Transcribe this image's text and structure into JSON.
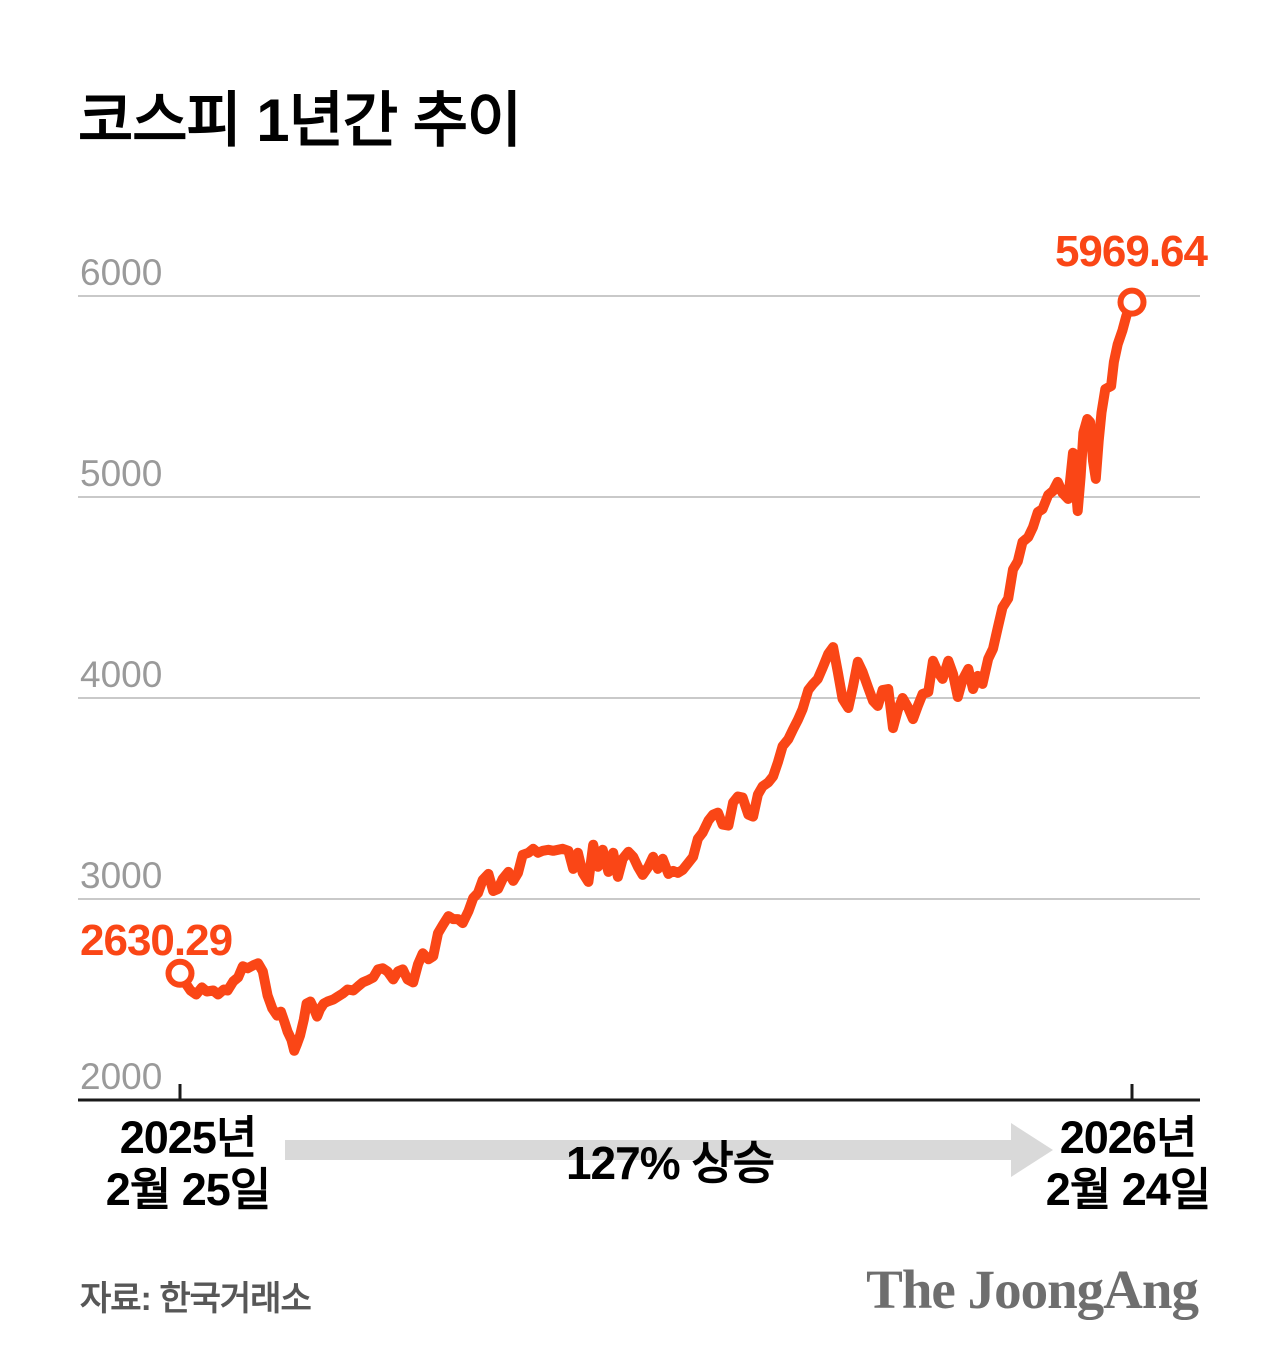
{
  "title": "코스피 1년간 추이",
  "colors": {
    "accent_orange": "#fa4616",
    "grid_gray": "#c9c9c9",
    "tick_label_gray": "#9a9a9a",
    "axis_black": "#1a1a1a",
    "arrow_gray": "#d9d9d9",
    "source_gray": "#575757",
    "logo_gray": "#6e6e6e"
  },
  "chart_data": {
    "type": "line",
    "title": "코스피 1년간 추이",
    "series_name": "KOSPI",
    "grid": true,
    "legend": "none",
    "ylim": [
      2000,
      6000
    ],
    "y_ticks": [
      2000,
      3000,
      4000,
      5000,
      6000
    ],
    "x_start_date": [
      "2025년",
      "2월 25일"
    ],
    "x_end_date": [
      "2026년",
      "2월 24일"
    ],
    "start_value": 2630.29,
    "end_value": 5969.64,
    "start_label": "2630.29",
    "end_label": "5969.64",
    "annotation": "127% 상승",
    "points": [
      [
        0,
        2630.29
      ],
      [
        0.006,
        2580
      ],
      [
        0.011,
        2545
      ],
      [
        0.017,
        2525
      ],
      [
        0.023,
        2560
      ],
      [
        0.028,
        2540
      ],
      [
        0.035,
        2545
      ],
      [
        0.04,
        2525
      ],
      [
        0.046,
        2550
      ],
      [
        0.05,
        2545
      ],
      [
        0.056,
        2590
      ],
      [
        0.061,
        2610
      ],
      [
        0.066,
        2665
      ],
      [
        0.071,
        2655
      ],
      [
        0.077,
        2670
      ],
      [
        0.082,
        2680
      ],
      [
        0.087,
        2640
      ],
      [
        0.092,
        2520
      ],
      [
        0.097,
        2455
      ],
      [
        0.102,
        2420
      ],
      [
        0.106,
        2440
      ],
      [
        0.11,
        2385
      ],
      [
        0.113,
        2340
      ],
      [
        0.117,
        2300
      ],
      [
        0.12,
        2245
      ],
      [
        0.123,
        2280
      ],
      [
        0.126,
        2320
      ],
      [
        0.13,
        2400
      ],
      [
        0.133,
        2480
      ],
      [
        0.137,
        2490
      ],
      [
        0.141,
        2450
      ],
      [
        0.144,
        2415
      ],
      [
        0.147,
        2450
      ],
      [
        0.151,
        2480
      ],
      [
        0.155,
        2490
      ],
      [
        0.161,
        2500
      ],
      [
        0.166,
        2515
      ],
      [
        0.171,
        2530
      ],
      [
        0.176,
        2550
      ],
      [
        0.182,
        2545
      ],
      [
        0.187,
        2565
      ],
      [
        0.192,
        2585
      ],
      [
        0.197,
        2595
      ],
      [
        0.203,
        2610
      ],
      [
        0.208,
        2650
      ],
      [
        0.213,
        2655
      ],
      [
        0.218,
        2640
      ],
      [
        0.224,
        2600
      ],
      [
        0.229,
        2640
      ],
      [
        0.234,
        2650
      ],
      [
        0.239,
        2600
      ],
      [
        0.245,
        2585
      ],
      [
        0.25,
        2675
      ],
      [
        0.255,
        2730
      ],
      [
        0.261,
        2700
      ],
      [
        0.266,
        2715
      ],
      [
        0.271,
        2830
      ],
      [
        0.276,
        2870
      ],
      [
        0.282,
        2915
      ],
      [
        0.287,
        2900
      ],
      [
        0.292,
        2900
      ],
      [
        0.297,
        2880
      ],
      [
        0.303,
        2940
      ],
      [
        0.308,
        3005
      ],
      [
        0.313,
        3030
      ],
      [
        0.318,
        3095
      ],
      [
        0.324,
        3125
      ],
      [
        0.329,
        3040
      ],
      [
        0.334,
        3050
      ],
      [
        0.339,
        3100
      ],
      [
        0.345,
        3135
      ],
      [
        0.35,
        3090
      ],
      [
        0.355,
        3130
      ],
      [
        0.36,
        3220
      ],
      [
        0.366,
        3230
      ],
      [
        0.371,
        3250
      ],
      [
        0.376,
        3230
      ],
      [
        0.381,
        3240
      ],
      [
        0.387,
        3245
      ],
      [
        0.392,
        3240
      ],
      [
        0.397,
        3245
      ],
      [
        0.402,
        3250
      ],
      [
        0.408,
        3240
      ],
      [
        0.413,
        3150
      ],
      [
        0.418,
        3230
      ],
      [
        0.423,
        3130
      ],
      [
        0.429,
        3085
      ],
      [
        0.434,
        3270
      ],
      [
        0.439,
        3160
      ],
      [
        0.444,
        3245
      ],
      [
        0.45,
        3135
      ],
      [
        0.455,
        3230
      ],
      [
        0.46,
        3110
      ],
      [
        0.465,
        3200
      ],
      [
        0.471,
        3235
      ],
      [
        0.476,
        3210
      ],
      [
        0.481,
        3160
      ],
      [
        0.486,
        3120
      ],
      [
        0.492,
        3160
      ],
      [
        0.497,
        3210
      ],
      [
        0.502,
        3150
      ],
      [
        0.507,
        3200
      ],
      [
        0.513,
        3125
      ],
      [
        0.518,
        3140
      ],
      [
        0.523,
        3130
      ],
      [
        0.528,
        3145
      ],
      [
        0.534,
        3180
      ],
      [
        0.539,
        3210
      ],
      [
        0.544,
        3300
      ],
      [
        0.549,
        3330
      ],
      [
        0.555,
        3390
      ],
      [
        0.56,
        3420
      ],
      [
        0.565,
        3430
      ],
      [
        0.57,
        3370
      ],
      [
        0.576,
        3365
      ],
      [
        0.581,
        3480
      ],
      [
        0.586,
        3510
      ],
      [
        0.591,
        3505
      ],
      [
        0.597,
        3420
      ],
      [
        0.602,
        3410
      ],
      [
        0.607,
        3520
      ],
      [
        0.612,
        3560
      ],
      [
        0.618,
        3580
      ],
      [
        0.623,
        3610
      ],
      [
        0.628,
        3680
      ],
      [
        0.633,
        3760
      ],
      [
        0.639,
        3795
      ],
      [
        0.644,
        3845
      ],
      [
        0.649,
        3890
      ],
      [
        0.654,
        3945
      ],
      [
        0.66,
        4040
      ],
      [
        0.665,
        4070
      ],
      [
        0.67,
        4095
      ],
      [
        0.675,
        4150
      ],
      [
        0.681,
        4220
      ],
      [
        0.686,
        4253
      ],
      [
        0.691,
        4130
      ],
      [
        0.696,
        3995
      ],
      [
        0.702,
        3950
      ],
      [
        0.707,
        4060
      ],
      [
        0.712,
        4180
      ],
      [
        0.717,
        4130
      ],
      [
        0.723,
        4050
      ],
      [
        0.728,
        3985
      ],
      [
        0.733,
        3960
      ],
      [
        0.738,
        4040
      ],
      [
        0.744,
        4045
      ],
      [
        0.749,
        3850
      ],
      [
        0.754,
        3940
      ],
      [
        0.759,
        4000
      ],
      [
        0.765,
        3950
      ],
      [
        0.77,
        3895
      ],
      [
        0.775,
        3960
      ],
      [
        0.78,
        4020
      ],
      [
        0.786,
        4030
      ],
      [
        0.791,
        4185
      ],
      [
        0.796,
        4130
      ],
      [
        0.801,
        4095
      ],
      [
        0.807,
        4185
      ],
      [
        0.812,
        4120
      ],
      [
        0.817,
        4005
      ],
      [
        0.822,
        4090
      ],
      [
        0.828,
        4145
      ],
      [
        0.833,
        4045
      ],
      [
        0.838,
        4110
      ],
      [
        0.843,
        4070
      ],
      [
        0.849,
        4195
      ],
      [
        0.854,
        4245
      ],
      [
        0.859,
        4350
      ],
      [
        0.864,
        4450
      ],
      [
        0.87,
        4495
      ],
      [
        0.875,
        4640
      ],
      [
        0.88,
        4680
      ],
      [
        0.885,
        4776
      ],
      [
        0.891,
        4800
      ],
      [
        0.896,
        4850
      ],
      [
        0.901,
        4925
      ],
      [
        0.906,
        4940
      ],
      [
        0.912,
        5010
      ],
      [
        0.917,
        5030
      ],
      [
        0.922,
        5075
      ],
      [
        0.927,
        5020
      ],
      [
        0.933,
        4990
      ],
      [
        0.938,
        5220
      ],
      [
        0.943,
        4930
      ],
      [
        0.946,
        5100
      ],
      [
        0.949,
        5320
      ],
      [
        0.953,
        5388
      ],
      [
        0.956,
        5373
      ],
      [
        0.959,
        5180
      ],
      [
        0.962,
        5090
      ],
      [
        0.965,
        5280
      ],
      [
        0.968,
        5420
      ],
      [
        0.972,
        5537
      ],
      [
        0.975,
        5545
      ],
      [
        0.978,
        5552
      ],
      [
        0.981,
        5672
      ],
      [
        0.985,
        5760
      ],
      [
        0.99,
        5830
      ],
      [
        0.994,
        5900
      ],
      [
        0.997,
        5940
      ],
      [
        1,
        5969.64
      ]
    ]
  },
  "footer": {
    "source": "자료: 한국거래소",
    "logo": "The JoongAng"
  }
}
